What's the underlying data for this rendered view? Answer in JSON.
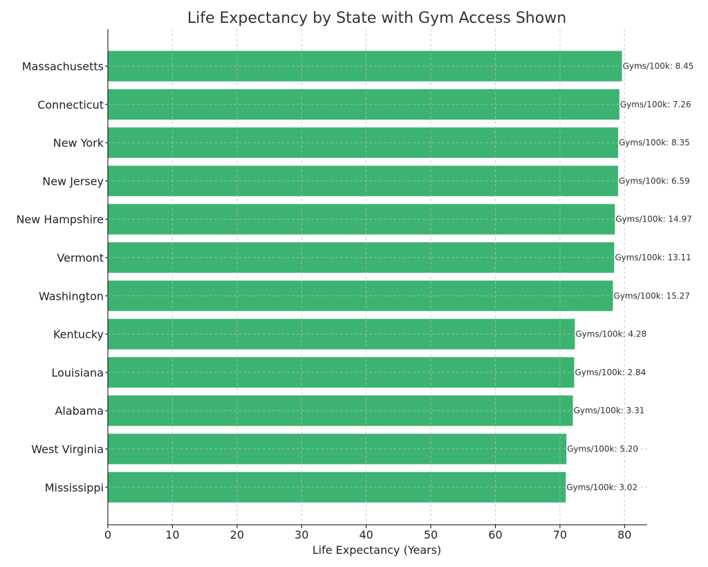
{
  "chart_data": {
    "type": "bar",
    "orientation": "horizontal",
    "title": "Life Expectancy by State with Gym Access Shown",
    "xlabel": "Life Expectancy (Years)",
    "ylabel": "",
    "xlim": [
      0,
      83.5
    ],
    "xticks": [
      0,
      10,
      20,
      30,
      40,
      50,
      60,
      70,
      80
    ],
    "grid": true,
    "bar_color": "#3cb371",
    "categories": [
      "Massachusetts",
      "Connecticut",
      "New York",
      "New Jersey",
      "New Hampshire",
      "Vermont",
      "Washington",
      "Kentucky",
      "Louisiana",
      "Alabama",
      "West Virginia",
      "Mississippi"
    ],
    "values": [
      79.6,
      79.2,
      79.0,
      79.0,
      78.5,
      78.4,
      78.2,
      72.3,
      72.2,
      72.0,
      71.0,
      70.9
    ],
    "annotations": [
      "Gyms/100k: 8.45",
      "Gyms/100k: 7.26",
      "Gyms/100k: 8.35",
      "Gyms/100k: 6.59",
      "Gyms/100k: 14.97",
      "Gyms/100k: 13.11",
      "Gyms/100k: 15.27",
      "Gyms/100k: 4.28",
      "Gyms/100k: 2.84",
      "Gyms/100k: 3.31",
      "Gyms/100k: 5.20",
      "Gyms/100k: 3.02"
    ]
  }
}
